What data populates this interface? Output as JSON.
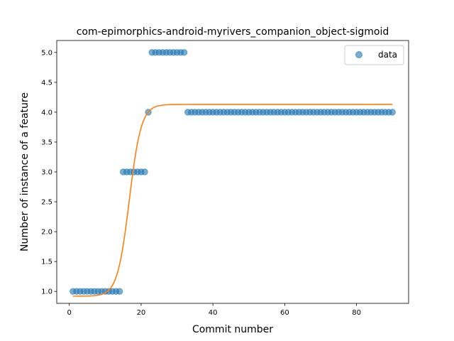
{
  "chart_data": {
    "type": "scatter",
    "title": "com-epimorphics-android-myrivers_companion_object-sigmoid",
    "xlabel": "Commit number",
    "ylabel": "Number of instance of a feature",
    "xlim": [
      -3.5,
      94.5
    ],
    "ylim": [
      0.8,
      5.2
    ],
    "x_ticks": [
      0,
      20,
      40,
      60,
      80
    ],
    "y_ticks": [
      1.0,
      1.5,
      2.0,
      2.5,
      3.0,
      3.5,
      4.0,
      4.5,
      5.0
    ],
    "grid": false,
    "legend": {
      "placement": "top-right",
      "entries": [
        "data"
      ]
    },
    "colors": {
      "data": "#1f77b4",
      "fit": "#ff7f0e"
    },
    "series": [
      {
        "name": "data",
        "kind": "scatter",
        "segments": [
          {
            "x_from": 1,
            "x_to": 14,
            "y": 1.0
          },
          {
            "x_from": 15,
            "x_to": 21,
            "y": 3.0
          },
          {
            "x_from": 22,
            "x_to": 22,
            "y": 4.0
          },
          {
            "x_from": 23,
            "x_to": 32,
            "y": 5.0
          },
          {
            "x_from": 33,
            "x_to": 90,
            "y": 4.0
          }
        ]
      },
      {
        "kind": "line",
        "sigmoid": {
          "lower": 0.92,
          "upper": 4.13,
          "midpoint": 16.7,
          "rate": 0.6
        },
        "x_range": [
          1,
          90
        ]
      }
    ]
  }
}
